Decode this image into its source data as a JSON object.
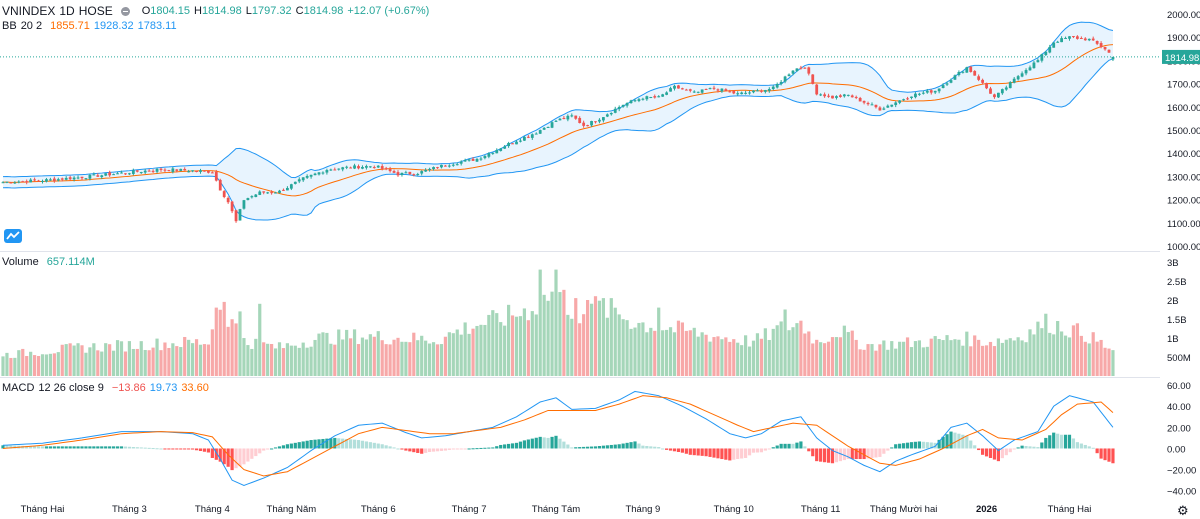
{
  "header": {
    "symbol": "VNINDEX",
    "interval": "1D",
    "exchange": "HOSE",
    "ohlc": {
      "o_label": "O",
      "o": "1804.15",
      "h_label": "H",
      "h": "1814.98",
      "l_label": "L",
      "l": "1797.32",
      "c_label": "C",
      "c": "1814.98",
      "change": "+12.07 (+0.67%)"
    }
  },
  "indicators": {
    "bb": {
      "name": "BB",
      "params": "20 2",
      "basis": "1855.71",
      "upper": "1928.32",
      "lower": "1783.11"
    },
    "volume": {
      "name": "Volume",
      "value": "657.114M"
    },
    "macd": {
      "name": "MACD",
      "params": "12 26 close 9",
      "histogram": "−13.86",
      "macd": "19.73",
      "signal": "33.60"
    }
  },
  "colors": {
    "up": "#26a69a",
    "down": "#ef5350",
    "bb_fill": "#2196f3",
    "bb_line": "#2196f3",
    "basis": "#ff6d00",
    "macd_line": "#2196f3",
    "signal_line": "#ff6d00",
    "vol_up": "#a5d6b9",
    "vol_down": "#f7a8a8"
  },
  "price_axis": {
    "ticks": [
      "2000.00",
      "1900.00",
      "1800.00",
      "1700.00",
      "1600.00",
      "1500.00",
      "1400.00",
      "1300.00",
      "1200.00",
      "1100.00",
      "1000.00"
    ],
    "last_price": "1814.98"
  },
  "volume_axis": {
    "ticks": [
      "3B",
      "2.5B",
      "2B",
      "1.5B",
      "1B",
      "500M"
    ]
  },
  "macd_axis": {
    "ticks": [
      "60.00",
      "40.00",
      "20.00",
      "0.00",
      "−20.00",
      "−40.00"
    ]
  },
  "time_axis": [
    "Tháng Hai",
    "Tháng 3",
    "Tháng 4",
    "Tháng Năm",
    "Tháng 6",
    "Tháng 7",
    "Tháng Tám",
    "Tháng 9",
    "Tháng 10",
    "Tháng 11",
    "Tháng Mười hai",
    "2026",
    "Tháng Hai"
  ],
  "chart_data": [
    {
      "type": "candlestick",
      "title": "VNINDEX 1D HOSE",
      "ylim": [
        1000,
        2000
      ],
      "x": [
        "Tháng Hai",
        "Tháng 3",
        "Tháng 4",
        "Tháng Năm",
        "Tháng 6",
        "Tháng 7",
        "Tháng Tám",
        "Tháng 9",
        "Tháng 10",
        "Tháng 11",
        "Tháng Mười hai",
        "2026",
        "Tháng Hai"
      ],
      "close_anchors": [
        [
          0,
          1275
        ],
        [
          12,
          1285
        ],
        [
          22,
          1300
        ],
        [
          32,
          1318
        ],
        [
          40,
          1330
        ],
        [
          48,
          1325
        ],
        [
          53,
          1320
        ],
        [
          55,
          1245
        ],
        [
          57,
          1190
        ],
        [
          59,
          1105
        ],
        [
          61,
          1200
        ],
        [
          65,
          1230
        ],
        [
          70,
          1235
        ],
        [
          76,
          1290
        ],
        [
          82,
          1330
        ],
        [
          88,
          1340
        ],
        [
          94,
          1345
        ],
        [
          100,
          1310
        ],
        [
          105,
          1315
        ],
        [
          112,
          1350
        ],
        [
          120,
          1375
        ],
        [
          128,
          1440
        ],
        [
          135,
          1490
        ],
        [
          140,
          1540
        ],
        [
          144,
          1560
        ],
        [
          147,
          1520
        ],
        [
          150,
          1540
        ],
        [
          157,
          1610
        ],
        [
          162,
          1640
        ],
        [
          166,
          1640
        ],
        [
          170,
          1685
        ],
        [
          175,
          1660
        ],
        [
          180,
          1680
        ],
        [
          186,
          1655
        ],
        [
          190,
          1665
        ],
        [
          195,
          1680
        ],
        [
          200,
          1760
        ],
        [
          203,
          1775
        ],
        [
          206,
          1660
        ],
        [
          210,
          1640
        ],
        [
          214,
          1650
        ],
        [
          218,
          1620
        ],
        [
          222,
          1590
        ],
        [
          226,
          1620
        ],
        [
          230,
          1650
        ],
        [
          236,
          1670
        ],
        [
          240,
          1720
        ],
        [
          244,
          1770
        ],
        [
          247,
          1720
        ],
        [
          251,
          1640
        ],
        [
          255,
          1700
        ],
        [
          258,
          1750
        ],
        [
          262,
          1800
        ],
        [
          266,
          1880
        ],
        [
          270,
          1900
        ],
        [
          275,
          1890
        ],
        [
          279,
          1850
        ],
        [
          281,
          1815
        ]
      ],
      "last": {
        "open": 1804.15,
        "high": 1814.98,
        "low": 1797.32,
        "close": 1814.98
      },
      "overlays": {
        "bb_length": 20,
        "bb_mult": 2
      }
    },
    {
      "type": "bar",
      "title": "Volume",
      "ylim": [
        0,
        3000000000
      ],
      "vol_anchors": [
        [
          0,
          0.55
        ],
        [
          20,
          0.75
        ],
        [
          40,
          0.85
        ],
        [
          52,
          0.9
        ],
        [
          55,
          1.9
        ],
        [
          58,
          1.4
        ],
        [
          62,
          0.9
        ],
        [
          70,
          0.75
        ],
        [
          80,
          1.0
        ],
        [
          90,
          1.05
        ],
        [
          100,
          1.0
        ],
        [
          110,
          0.95
        ],
        [
          118,
          1.3
        ],
        [
          126,
          1.5
        ],
        [
          132,
          1.7
        ],
        [
          137,
          2.0
        ],
        [
          140,
          2.3
        ],
        [
          145,
          1.6
        ],
        [
          150,
          1.8
        ],
        [
          155,
          1.7
        ],
        [
          160,
          1.4
        ],
        [
          166,
          1.3
        ],
        [
          172,
          1.2
        ],
        [
          180,
          1.05
        ],
        [
          190,
          0.9
        ],
        [
          198,
          1.3
        ],
        [
          202,
          1.4
        ],
        [
          206,
          0.9
        ],
        [
          212,
          1.2
        ],
        [
          218,
          0.8
        ],
        [
          226,
          0.85
        ],
        [
          234,
          0.9
        ],
        [
          242,
          1.0
        ],
        [
          250,
          0.9
        ],
        [
          258,
          1.05
        ],
        [
          264,
          1.4
        ],
        [
          268,
          1.3
        ],
        [
          274,
          1.1
        ],
        [
          281,
          0.66
        ]
      ],
      "spikes": [
        [
          54,
          1.8
        ],
        [
          56,
          1.95
        ],
        [
          60,
          1.7
        ],
        [
          65,
          1.9
        ],
        [
          136,
          2.8
        ],
        [
          140,
          2.8
        ],
        [
          145,
          2.05
        ],
        [
          150,
          2.1
        ],
        [
          152,
          2.05
        ],
        [
          166,
          1.8
        ],
        [
          198,
          1.75
        ]
      ]
    },
    {
      "type": "line",
      "title": "MACD",
      "series_names": [
        "MACD",
        "Signal",
        "Histogram"
      ],
      "ylim": [
        -45,
        62
      ],
      "macd_anchors": [
        [
          0,
          3
        ],
        [
          10,
          5
        ],
        [
          20,
          10
        ],
        [
          30,
          16
        ],
        [
          40,
          16
        ],
        [
          48,
          14
        ],
        [
          52,
          8
        ],
        [
          55,
          -10
        ],
        [
          58,
          -30
        ],
        [
          61,
          -35
        ],
        [
          66,
          -28
        ],
        [
          72,
          -18
        ],
        [
          78,
          -2
        ],
        [
          84,
          12
        ],
        [
          90,
          22
        ],
        [
          96,
          24
        ],
        [
          102,
          15
        ],
        [
          106,
          10
        ],
        [
          112,
          12
        ],
        [
          118,
          16
        ],
        [
          124,
          20
        ],
        [
          130,
          30
        ],
        [
          136,
          44
        ],
        [
          140,
          48
        ],
        [
          144,
          37
        ],
        [
          150,
          38
        ],
        [
          156,
          46
        ],
        [
          160,
          54
        ],
        [
          166,
          50
        ],
        [
          172,
          40
        ],
        [
          178,
          28
        ],
        [
          184,
          14
        ],
        [
          188,
          10
        ],
        [
          192,
          14
        ],
        [
          197,
          26
        ],
        [
          202,
          30
        ],
        [
          206,
          10
        ],
        [
          210,
          -2
        ],
        [
          214,
          -8
        ],
        [
          218,
          -16
        ],
        [
          222,
          -22
        ],
        [
          226,
          -12
        ],
        [
          230,
          -6
        ],
        [
          236,
          2
        ],
        [
          240,
          20
        ],
        [
          244,
          24
        ],
        [
          248,
          12
        ],
        [
          252,
          -2
        ],
        [
          256,
          8
        ],
        [
          262,
          16
        ],
        [
          266,
          40
        ],
        [
          270,
          50
        ],
        [
          276,
          44
        ],
        [
          281,
          20
        ]
      ],
      "signal_anchors": [
        [
          0,
          0
        ],
        [
          10,
          3
        ],
        [
          20,
          8
        ],
        [
          30,
          14
        ],
        [
          40,
          16
        ],
        [
          48,
          15
        ],
        [
          53,
          11
        ],
        [
          57,
          -6
        ],
        [
          61,
          -20
        ],
        [
          66,
          -26
        ],
        [
          72,
          -22
        ],
        [
          78,
          -10
        ],
        [
          84,
          2
        ],
        [
          90,
          14
        ],
        [
          96,
          20
        ],
        [
          102,
          17
        ],
        [
          108,
          14
        ],
        [
          114,
          14
        ],
        [
          120,
          17
        ],
        [
          126,
          20
        ],
        [
          132,
          27
        ],
        [
          138,
          36
        ],
        [
          144,
          36
        ],
        [
          150,
          36
        ],
        [
          156,
          42
        ],
        [
          162,
          50
        ],
        [
          168,
          48
        ],
        [
          174,
          42
        ],
        [
          180,
          32
        ],
        [
          186,
          22
        ],
        [
          190,
          16
        ],
        [
          195,
          20
        ],
        [
          200,
          24
        ],
        [
          206,
          22
        ],
        [
          210,
          12
        ],
        [
          214,
          2
        ],
        [
          218,
          -6
        ],
        [
          222,
          -14
        ],
        [
          226,
          -16
        ],
        [
          232,
          -10
        ],
        [
          238,
          0
        ],
        [
          244,
          12
        ],
        [
          248,
          18
        ],
        [
          252,
          10
        ],
        [
          258,
          8
        ],
        [
          264,
          18
        ],
        [
          268,
          32
        ],
        [
          272,
          42
        ],
        [
          278,
          44
        ],
        [
          281,
          34
        ]
      ]
    }
  ]
}
